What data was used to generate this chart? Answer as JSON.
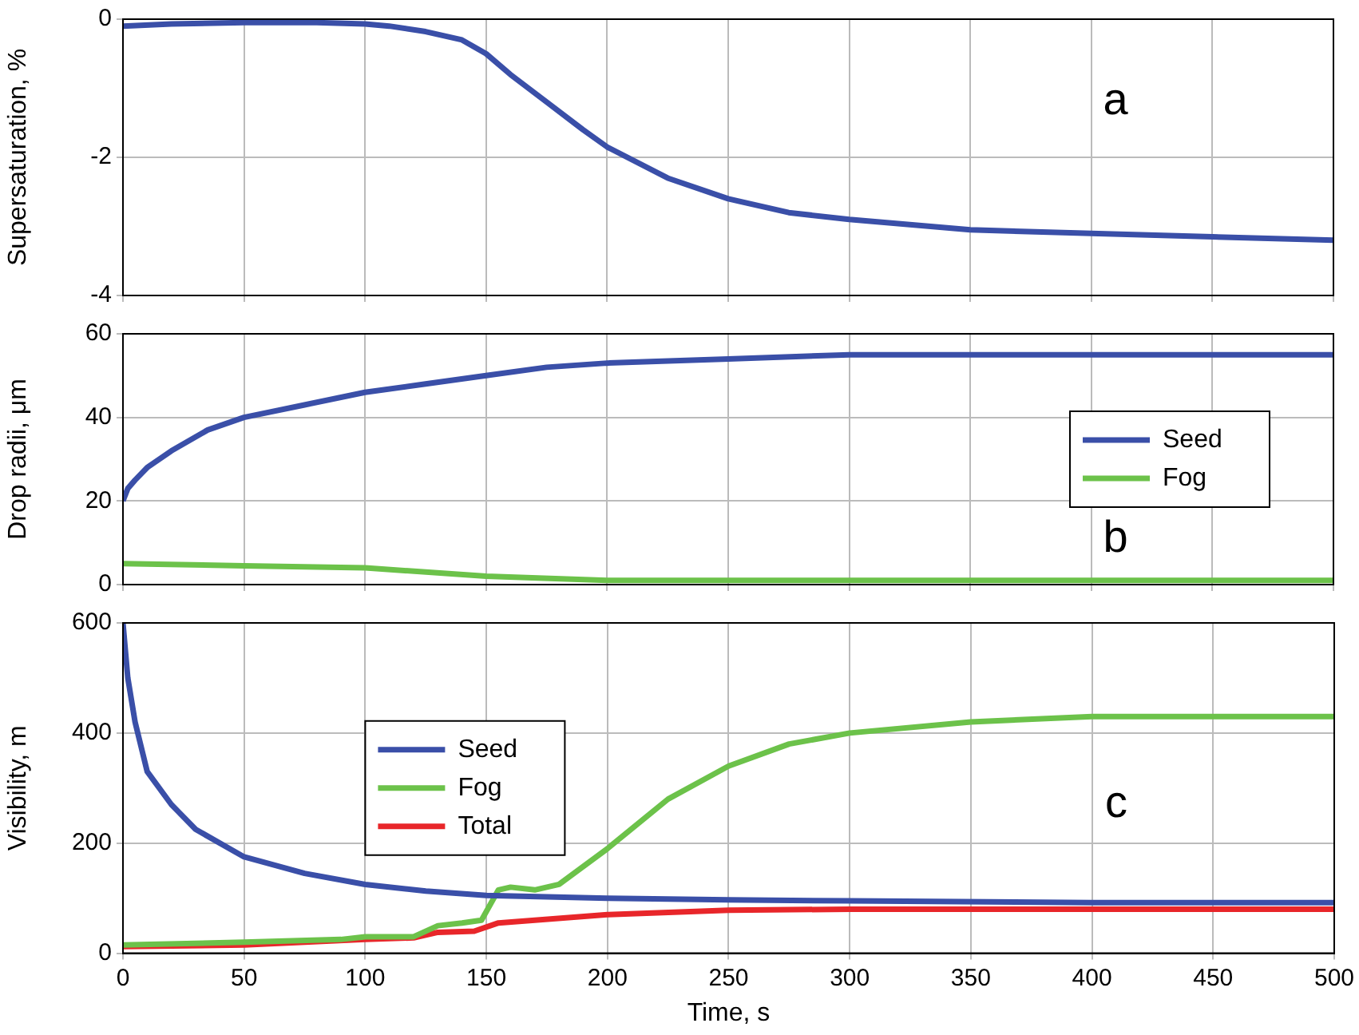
{
  "chart_data": [
    {
      "type": "line",
      "ylabel": "Supersaturation, %",
      "annotations": [
        "a"
      ],
      "xlim": [
        0,
        500
      ],
      "xticks": [
        0,
        50,
        100,
        150,
        200,
        250,
        300,
        350,
        400,
        450,
        500
      ],
      "ylim": [
        -4,
        0
      ],
      "yticks": [
        -4,
        -2,
        0
      ],
      "grid": true,
      "tick_labels": "y",
      "legend": false,
      "series": [
        {
          "color": "#3a4fa8",
          "x": [
            0,
            20,
            50,
            80,
            100,
            110,
            125,
            140,
            150,
            160,
            175,
            190,
            200,
            225,
            250,
            275,
            300,
            350,
            400,
            450,
            500
          ],
          "values": [
            -0.1,
            -0.07,
            -0.05,
            -0.05,
            -0.07,
            -0.1,
            -0.18,
            -0.3,
            -0.5,
            -0.8,
            -1.2,
            -1.6,
            -1.85,
            -2.3,
            -2.6,
            -2.8,
            -2.9,
            -3.05,
            -3.1,
            -3.15,
            -3.2
          ]
        }
      ]
    },
    {
      "type": "line",
      "ylabel": "Drop radii, μm",
      "annotations": [
        "b"
      ],
      "xlim": [
        0,
        500
      ],
      "xticks": [
        0,
        50,
        100,
        150,
        200,
        250,
        300,
        350,
        400,
        450,
        500
      ],
      "ylim": [
        0,
        60
      ],
      "yticks": [
        0,
        20,
        40,
        60
      ],
      "grid": true,
      "tick_labels": "y",
      "legend": "right",
      "series": [
        {
          "name": "Seed",
          "color": "#3a4fa8",
          "x": [
            0,
            2,
            5,
            10,
            20,
            35,
            50,
            75,
            100,
            125,
            150,
            175,
            200,
            250,
            300,
            350,
            400,
            500
          ],
          "values": [
            20,
            23,
            25,
            28,
            32,
            37,
            40,
            43,
            46,
            48,
            50,
            52,
            53,
            54,
            55,
            55,
            55,
            55
          ]
        },
        {
          "name": "Fog",
          "color": "#6cc24a",
          "x": [
            0,
            50,
            100,
            150,
            200,
            250,
            300,
            400,
            500
          ],
          "values": [
            5,
            4.5,
            4,
            2,
            1,
            1,
            1,
            1,
            1
          ]
        }
      ]
    },
    {
      "type": "line",
      "xlabel": "Time, s",
      "ylabel": "Visibility, m",
      "annotations": [
        "c"
      ],
      "xlim": [
        0,
        500
      ],
      "xticks": [
        0,
        50,
        100,
        150,
        200,
        250,
        300,
        350,
        400,
        450,
        500
      ],
      "ylim": [
        0,
        600
      ],
      "yticks": [
        0,
        200,
        400,
        600
      ],
      "grid": true,
      "legend": "left",
      "series": [
        {
          "name": "Seed",
          "color": "#3a4fa8",
          "x": [
            0,
            2,
            5,
            10,
            20,
            30,
            50,
            75,
            100,
            125,
            150,
            200,
            250,
            300,
            400,
            500
          ],
          "values": [
            600,
            500,
            420,
            330,
            270,
            225,
            175,
            145,
            125,
            113,
            105,
            100,
            97,
            95,
            92,
            92
          ]
        },
        {
          "name": "Fog",
          "color": "#6cc24a",
          "x": [
            0,
            50,
            90,
            100,
            120,
            130,
            140,
            148,
            155,
            160,
            170,
            180,
            200,
            225,
            250,
            275,
            300,
            350,
            400,
            450,
            500
          ],
          "values": [
            15,
            20,
            25,
            30,
            30,
            50,
            55,
            60,
            115,
            120,
            115,
            125,
            190,
            280,
            340,
            380,
            400,
            420,
            430,
            430,
            430
          ]
        },
        {
          "name": "Total",
          "color": "#e8262a",
          "x": [
            0,
            50,
            100,
            120,
            130,
            145,
            155,
            170,
            200,
            250,
            300,
            400,
            500
          ],
          "values": [
            12,
            15,
            25,
            28,
            38,
            40,
            55,
            60,
            70,
            78,
            80,
            80,
            80
          ]
        }
      ]
    }
  ]
}
